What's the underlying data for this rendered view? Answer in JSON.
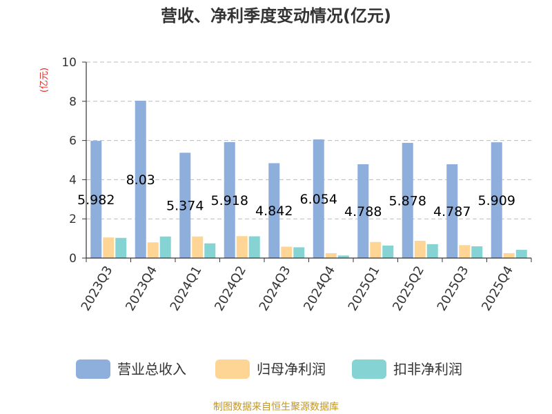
{
  "chart_data": {
    "type": "bar",
    "title": "营收、净利季度变动情况(亿元)",
    "ylabel": "(亿元)",
    "ylim": [
      0,
      10
    ],
    "yticks": [
      0,
      2,
      4,
      6,
      8,
      10
    ],
    "grid": true,
    "legend_position": "bottom",
    "categories": [
      "2023Q3",
      "2023Q4",
      "2024Q1",
      "2024Q2",
      "2024Q3",
      "2024Q4",
      "2025Q1",
      "2025Q2",
      "2025Q3",
      "2025Q4"
    ],
    "series": [
      {
        "name": "营业总收入",
        "color": "#8eaedb",
        "values": [
          5.982,
          8.03,
          5.374,
          5.918,
          4.842,
          6.054,
          4.788,
          5.878,
          4.787,
          5.909
        ],
        "labels": [
          "5.982",
          "8.03",
          "5.374",
          "5.918",
          "4.842",
          "6.054",
          "4.788",
          "5.878",
          "4.787",
          "5.909"
        ]
      },
      {
        "name": "归母净利润",
        "color": "#fed594",
        "values": [
          1.05,
          0.8,
          1.1,
          1.12,
          0.58,
          0.25,
          0.82,
          0.88,
          0.66,
          0.25
        ]
      },
      {
        "name": "扣非净利润",
        "color": "#86d3d4",
        "values": [
          1.03,
          1.1,
          0.75,
          1.11,
          0.55,
          0.13,
          0.64,
          0.71,
          0.6,
          0.42
        ]
      }
    ],
    "source": "制图数据来自恒生聚源数据库"
  }
}
